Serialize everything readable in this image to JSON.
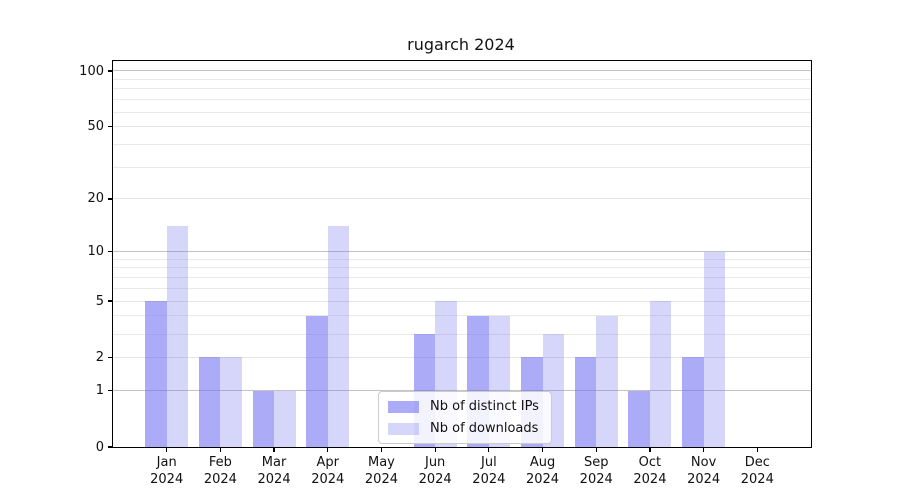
{
  "figure": {
    "title": "rugarch 2024",
    "background_color": "#ffffff",
    "axis_color": "#000000",
    "major_gridline_color": "#c3c3c3",
    "minor_gridline_color": "#eaeaea",
    "bar_base_color": "#6666f0"
  },
  "chart_data": {
    "type": "bar",
    "title": "rugarch 2024",
    "categories": [
      "Jan",
      "Feb",
      "Mar",
      "Apr",
      "May",
      "Jun",
      "Jul",
      "Aug",
      "Sep",
      "Oct",
      "Nov",
      "Dec"
    ],
    "category_year": "2024",
    "series": [
      {
        "name": "Nb of distinct IPs",
        "color": "rgba(102,102,240,0.55)",
        "values": [
          5,
          2,
          1,
          4,
          0,
          3,
          4,
          2,
          2,
          1,
          2,
          0
        ]
      },
      {
        "name": "Nb of downloads",
        "color": "rgba(102,102,240,0.27)",
        "values": [
          14,
          2,
          1,
          14,
          0,
          5,
          4,
          3,
          4,
          5,
          10,
          0
        ]
      }
    ],
    "yscale": "log1p",
    "ylim": [
      0,
      100
    ],
    "yticks": [
      0,
      1,
      2,
      5,
      10,
      20,
      50,
      100
    ],
    "gridline_values_major": [
      1,
      10,
      100
    ],
    "gridline_values_labeled": [
      2,
      5,
      20,
      50
    ],
    "gridline_values_minor": [
      3,
      4,
      6,
      7,
      8,
      9,
      30,
      40,
      60,
      70,
      80,
      90
    ],
    "grid": true,
    "legend_position": "lower center",
    "xlabel": "",
    "ylabel": ""
  }
}
